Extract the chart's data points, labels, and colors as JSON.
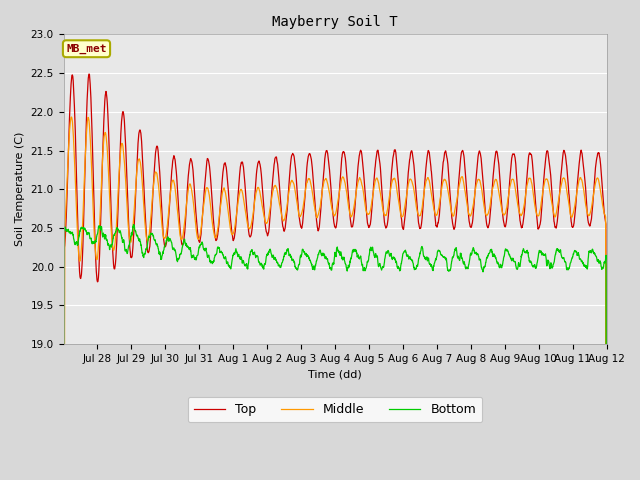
{
  "title": "Mayberry Soil T",
  "xlabel": "Time (dd)",
  "ylabel": "Soil Temperature (C)",
  "ylim": [
    19.0,
    23.0
  ],
  "yticks": [
    19.0,
    19.5,
    20.0,
    20.5,
    21.0,
    21.5,
    22.0,
    22.5,
    23.0
  ],
  "legend_label": "MB_met",
  "legend_box_facecolor": "#ffffcc",
  "legend_box_edgecolor": "#aaaa00",
  "line_colors": {
    "top": "#cc0000",
    "middle": "#ff9900",
    "bottom": "#00cc00"
  },
  "line_labels": [
    "Top",
    "Middle",
    "Bottom"
  ],
  "fig_facecolor": "#d8d8d8",
  "ax_facecolor": "#e8e8e8",
  "grid_color": "#ffffff",
  "x_tick_labels": [
    "Jul 28",
    "Jul 29",
    "Jul 30",
    "Jul 31",
    "Aug 1",
    "Aug 2",
    "Aug 3",
    "Aug 4",
    "Aug 5",
    "Aug 6",
    "Aug 7",
    "Aug 8",
    "Aug 9",
    "Aug 10",
    "Aug 11",
    "Aug 12"
  ],
  "x_tick_positions": [
    1,
    2,
    3,
    4,
    5,
    6,
    7,
    8,
    9,
    10,
    11,
    12,
    13,
    14,
    15,
    16
  ],
  "n_days": 16,
  "pts_per_day": 144,
  "figsize": [
    6.4,
    4.8
  ],
  "dpi": 100
}
